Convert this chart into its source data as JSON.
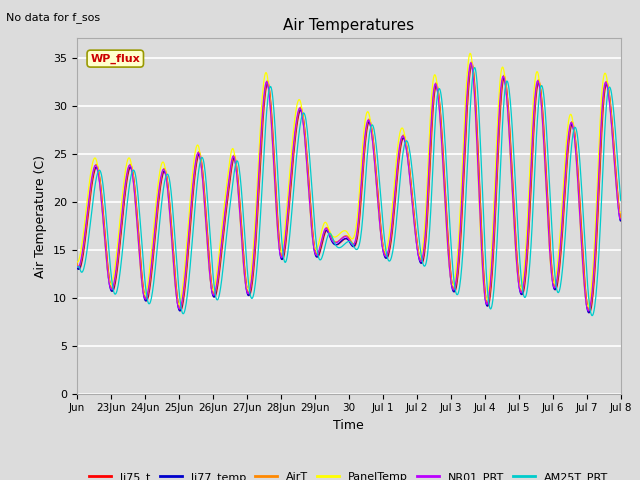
{
  "title": "Air Temperatures",
  "ylabel": "Air Temperature (C)",
  "xlabel": "Time",
  "annotation_text": "No data for f_sos",
  "annotation_box_text": "WP_flux",
  "ylim": [
    0,
    37
  ],
  "yticks": [
    0,
    5,
    10,
    15,
    20,
    25,
    30,
    35
  ],
  "background_color": "#dcdcdc",
  "plot_bg_color": "#dcdcdc",
  "grid_color": "#ffffff",
  "legend_entries": [
    {
      "label": "li75_t",
      "color": "#ff0000"
    },
    {
      "label": "li77_temp",
      "color": "#0000cc"
    },
    {
      "label": "AirT",
      "color": "#ff8800"
    },
    {
      "label": "PanelTemp",
      "color": "#ffff00"
    },
    {
      "label": "NR01_PRT",
      "color": "#bb00ff"
    },
    {
      "label": "AM25T_PRT",
      "color": "#00cccc"
    }
  ],
  "xtick_labels": [
    "Jun",
    "23Jun",
    "24Jun",
    "25Jun",
    "26Jun",
    "27Jun",
    "28Jun",
    "29Jun",
    "30",
    "Jul 1",
    "Jul 2",
    "Jul 3",
    "Jul 4",
    "Jul 5",
    "Jul 6",
    "Jul 7",
    "Jul 8"
  ],
  "signal_keypoints_x": [
    0,
    0.3,
    0.65,
    1.0,
    1.3,
    1.65,
    2.0,
    2.3,
    2.65,
    3.0,
    3.3,
    3.65,
    4.0,
    4.3,
    4.5,
    4.65,
    5.0,
    5.3,
    5.5,
    5.65,
    6.0,
    6.25,
    6.5,
    6.65,
    7.0,
    7.35,
    7.5,
    7.65,
    8.0,
    8.3,
    8.5,
    8.65,
    9.0,
    9.3,
    9.5,
    9.65,
    10.0,
    10.3,
    10.5,
    10.65,
    11.0,
    11.3,
    11.5,
    11.65,
    12.0,
    12.3,
    12.5,
    12.65,
    13.0,
    13.3,
    13.5,
    13.65,
    14.0,
    14.3,
    14.5,
    14.65,
    15.0,
    15.3,
    15.5,
    15.65,
    16.0
  ],
  "signal_keypoints_y": [
    13.5,
    17.5,
    23.0,
    11.0,
    16.5,
    23.0,
    10.0,
    16.0,
    22.5,
    9.0,
    15.5,
    24.5,
    10.5,
    16.0,
    22.0,
    24.5,
    11.0,
    17.5,
    29.5,
    32.0,
    14.5,
    19.5,
    28.5,
    29.0,
    15.0,
    17.0,
    16.0,
    15.5,
    16.0,
    17.5,
    26.5,
    28.0,
    15.5,
    17.5,
    25.0,
    26.5,
    16.0,
    17.5,
    30.5,
    31.0,
    12.5,
    16.5,
    30.5,
    34.0,
    11.0,
    17.5,
    31.5,
    31.5,
    12.0,
    17.0,
    30.5,
    31.5,
    12.0,
    17.5,
    27.0,
    27.0,
    9.5,
    16.5,
    30.5,
    31.5,
    18.0
  ]
}
